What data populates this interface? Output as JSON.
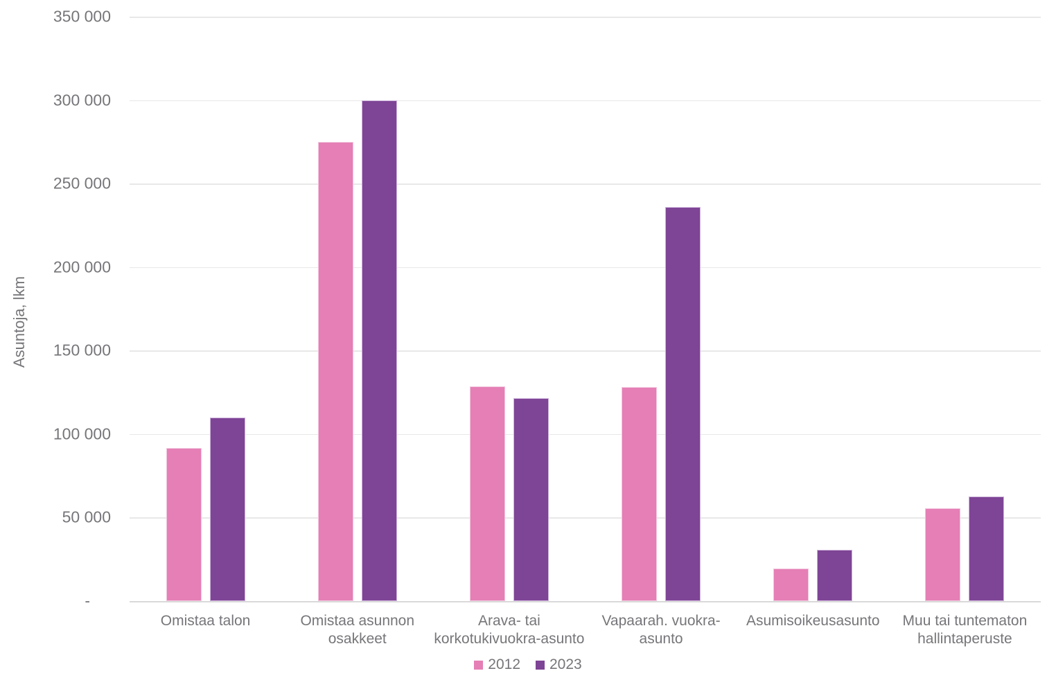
{
  "chart_data": {
    "type": "bar",
    "title": "",
    "xlabel": "",
    "ylabel": "Asuntoja, lkm",
    "ylim": [
      0,
      350000
    ],
    "ytick_interval": 50000,
    "ytick_labels": [
      "350 000",
      "300 000",
      "250 000",
      "200 000",
      "150 000",
      "100 000",
      "50 000",
      "-"
    ],
    "grid": true,
    "legend_position": "bottom-center",
    "categories": [
      "Omistaa talon",
      "Omistaa asunnon\nosakkeet",
      "Arava- tai\nkorkotukivuokra-asunto",
      "Vapaarah. vuokra-\nasunto",
      "Asumisoikeusasunto",
      "Muu tai tuntematon\nhallintaperuste"
    ],
    "series": [
      {
        "name": "2012",
        "color": "#e57fb5",
        "border_color": "#f2c6de",
        "values": [
          91500,
          275000,
          128500,
          128000,
          19500,
          55500
        ]
      },
      {
        "name": "2023",
        "color": "#7e4495",
        "border_color": "#cdb3da",
        "values": [
          110000,
          300000,
          121500,
          236000,
          30500,
          62500
        ]
      }
    ]
  },
  "style_colors": {
    "axis_text": "#76767a",
    "gridline": "#e8e8e8",
    "baseline": "#d9d9d9",
    "background": "#ffffff"
  }
}
